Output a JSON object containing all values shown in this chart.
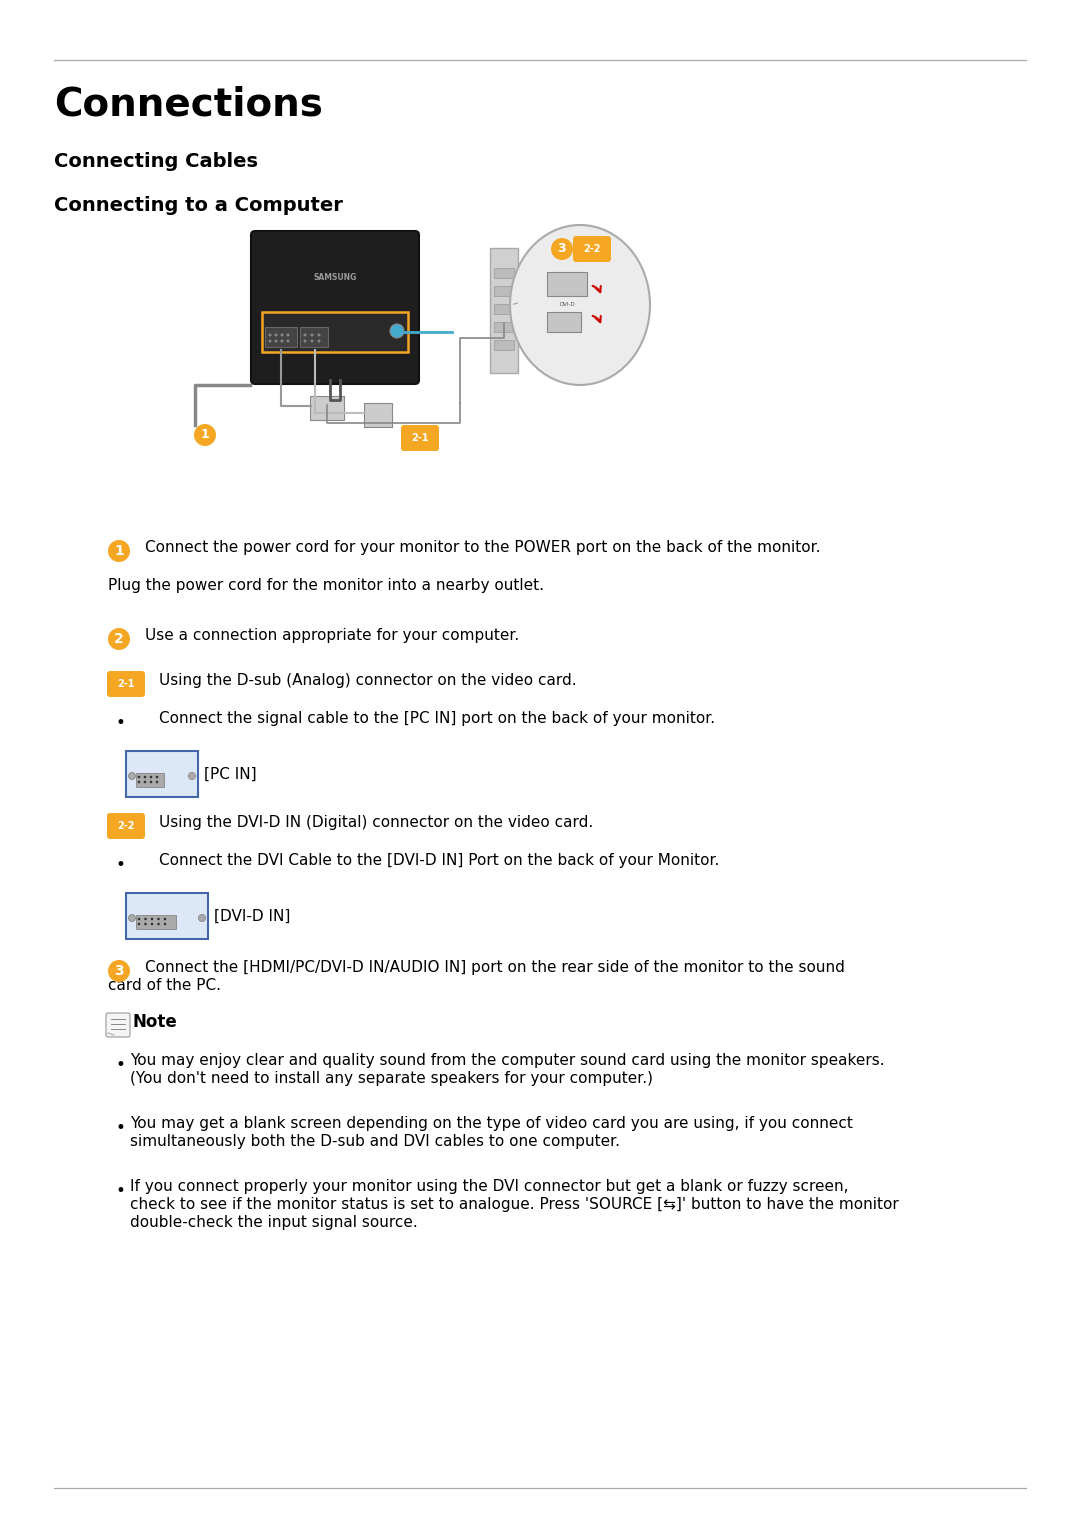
{
  "bg_color": "#ffffff",
  "text_color": "#000000",
  "line_color": "#555555",
  "badge_color": "#F5A623",
  "badge_text_color": "#ffffff",
  "title": "Connections",
  "subtitle1": "Connecting Cables",
  "subtitle2": "Connecting to a Computer",
  "title_font_size": 28,
  "sub_font_size": 14,
  "body_font_size": 11,
  "step1_text": "Connect the power cord for your monitor to the POWER port on the back of the monitor.",
  "step1b_text": "Plug the power cord for the monitor into a nearby outlet.",
  "step2_text": "Use a connection appropriate for your computer.",
  "step21_text": "Using the D-sub (Analog) connector on the video card.",
  "step21_bullet": "Connect the signal cable to the [PC IN] port on the back of your monitor.",
  "pc_in_label": "[PC IN]",
  "step22_text": "Using the DVI-D IN (Digital) connector on the video card.",
  "step22_bullet": "Connect the DVI Cable to the [DVI-D IN] Port on the back of your Monitor.",
  "dvi_label": "[DVI-D IN]",
  "step3_line1": "Connect the [HDMI/PC/DVI-D IN/AUDIO IN] port on the rear side of the monitor to the sound",
  "step3_line2": "card of the PC.",
  "note_label": "Note",
  "bullet1_line1": "You may enjoy clear and quality sound from the computer sound card using the monitor speakers.",
  "bullet1_line2": "(You don't need to install any separate speakers for your computer.)",
  "bullet2_line1": "You may get a blank screen depending on the type of video card you are using, if you connect",
  "bullet2_line2": "simultaneously both the D-sub and DVI cables to one computer.",
  "bullet3_line1": "If you connect properly your monitor using the DVI connector but get a blank or fuzzy screen,",
  "bullet3_line2": "check to see if the monitor status is set to analogue. Press 'SOURCE [⇆]' button to have the monitor",
  "bullet3_line3": "double-check the input signal source."
}
